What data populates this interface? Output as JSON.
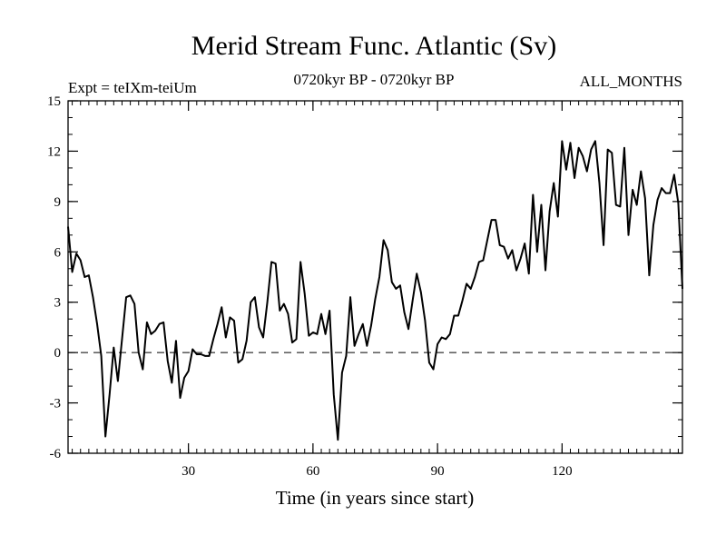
{
  "chart_data": {
    "type": "line",
    "title": "Merid Stream Func. Atlantic (Sv)",
    "subtitle_left": "Expt = teIXm-teiUm",
    "subtitle_center": "0720kyr BP - 0720kyr BP",
    "subtitle_right": "ALL_MONTHS",
    "xlabel": "Time (in years since start)",
    "ylabel": "",
    "xlim": [
      1,
      149
    ],
    "ylim": [
      -6,
      15
    ],
    "xticks": [
      30,
      60,
      90,
      120
    ],
    "yticks": [
      -6,
      -3,
      0,
      3,
      6,
      9,
      12,
      15
    ],
    "reference_line": {
      "y": 0,
      "style": "dashed"
    },
    "grid": false,
    "series": [
      {
        "x": [
          1,
          2,
          3,
          4,
          5,
          6,
          7,
          8,
          9,
          10,
          11,
          12,
          13,
          14,
          15,
          16,
          17,
          18,
          19,
          20,
          21,
          22,
          23,
          24,
          25,
          26,
          27,
          28,
          29,
          30,
          31,
          32,
          33,
          34,
          35,
          36,
          37,
          38,
          39,
          40,
          41,
          42,
          43,
          44,
          45,
          46,
          47,
          48,
          49,
          50,
          51,
          52,
          53,
          54,
          55,
          56,
          57,
          58,
          59,
          60,
          61,
          62,
          63,
          64,
          65,
          66,
          67,
          68,
          69,
          70,
          71,
          72,
          73,
          74,
          75,
          76,
          77,
          78,
          79,
          80,
          81,
          82,
          83,
          84,
          85,
          86,
          87,
          88,
          89,
          90,
          91,
          92,
          93,
          94,
          95,
          96,
          97,
          98,
          99,
          100,
          101,
          102,
          103,
          104,
          105,
          106,
          107,
          108,
          109,
          110,
          111,
          112,
          113,
          114,
          115,
          116,
          117,
          118,
          119,
          120,
          121,
          122,
          123,
          124,
          125,
          126,
          127,
          128,
          129,
          130,
          131,
          132,
          133,
          134,
          135,
          136,
          137,
          138,
          139,
          140,
          141,
          142,
          143,
          144,
          145,
          146,
          147,
          148,
          149
        ],
        "y": [
          7.5,
          4.8,
          5.9,
          5.5,
          4.5,
          4.6,
          3.3,
          1.7,
          -0.2,
          -5.0,
          -2.5,
          0.3,
          -1.7,
          0.8,
          3.3,
          3.4,
          2.9,
          0.0,
          -1.0,
          1.8,
          1.1,
          1.3,
          1.7,
          1.8,
          -0.5,
          -1.8,
          0.7,
          -2.7,
          -1.5,
          -1.1,
          0.2,
          -0.1,
          -0.1,
          -0.2,
          -0.2,
          0.8,
          1.7,
          2.7,
          0.9,
          2.1,
          1.9,
          -0.6,
          -0.4,
          0.7,
          3.0,
          3.3,
          1.5,
          0.9,
          3.0,
          5.4,
          5.3,
          2.5,
          2.9,
          2.3,
          0.6,
          0.8,
          5.4,
          3.5,
          1.0,
          1.2,
          1.1,
          2.3,
          1.1,
          2.5,
          -2.5,
          -5.2,
          -1.2,
          -0.2,
          3.3,
          0.4,
          1.1,
          1.7,
          0.4,
          1.6,
          3.2,
          4.5,
          6.7,
          6.1,
          4.2,
          3.8,
          4.0,
          2.4,
          1.4,
          3.1,
          4.7,
          3.6,
          1.9,
          -0.6,
          -1.0,
          0.5,
          0.9,
          0.8,
          1.1,
          2.2,
          2.2,
          3.1,
          4.1,
          3.8,
          4.5,
          5.4,
          5.5,
          6.7,
          7.9,
          7.9,
          6.4,
          6.3,
          5.6,
          6.1,
          4.9,
          5.6,
          6.5,
          4.7,
          9.4,
          6.0,
          8.8,
          4.9,
          8.4,
          10.1,
          8.1,
          12.6,
          10.9,
          12.5,
          10.4,
          12.2,
          11.7,
          10.8,
          12.1,
          12.6,
          10.1,
          6.4,
          12.1,
          11.9,
          8.8,
          8.7,
          12.2,
          7.0,
          9.7,
          8.8,
          10.8,
          9.2,
          4.6,
          7.6,
          9.1,
          9.8,
          9.5,
          9.5,
          10.6,
          8.9,
          3.8
        ]
      }
    ]
  }
}
